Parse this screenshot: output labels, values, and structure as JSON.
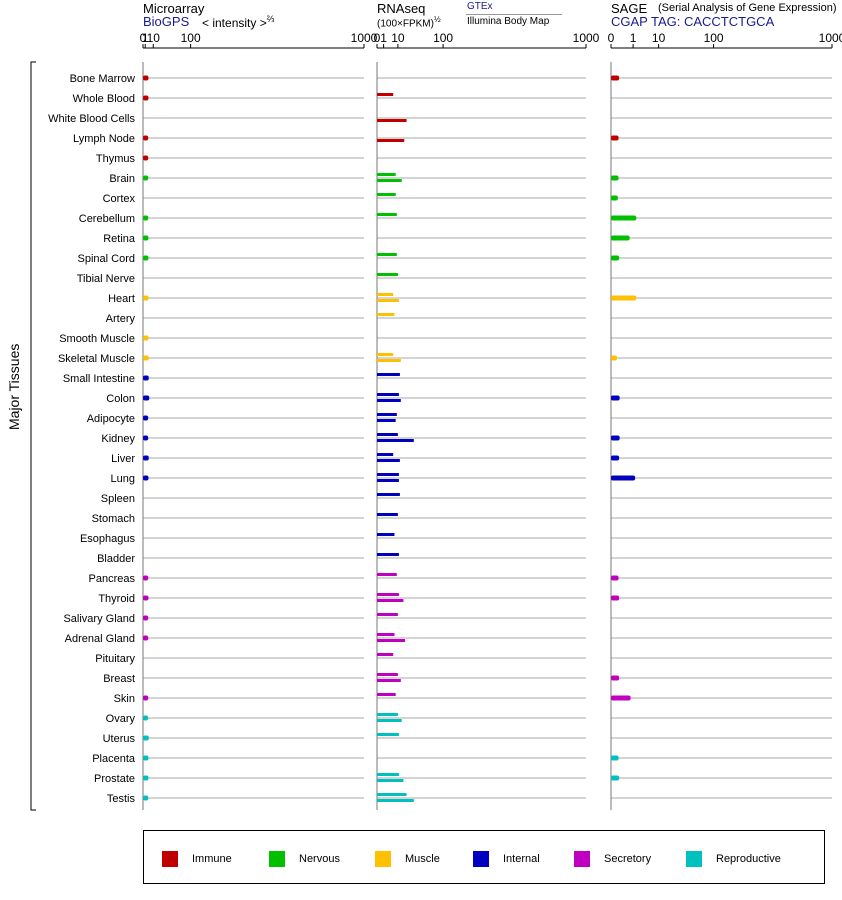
{
  "panels": {
    "microarray": {
      "title": "Microarray",
      "subtitle": "BioGPS",
      "unit": "< intensity >",
      "unit_exp": "⅔"
    },
    "rnaseq": {
      "title": "RNAseq",
      "unit": "(100×FPKM)",
      "unit_exp": "½",
      "source_top": "GTEx",
      "source_bottom": "Illumina Body Map"
    },
    "sage": {
      "title": "SAGE",
      "title_note": "(Serial Analysis of Gene Expression)",
      "subtitle": "CGAP  TAG: CACCTCTGCA"
    }
  },
  "y_axis_label": "Major Tissues",
  "legend": [
    {
      "label": "Immune",
      "color": "#c00000"
    },
    {
      "label": "Nervous",
      "color": "#00c000"
    },
    {
      "label": "Muscle",
      "color": "#ffc000"
    },
    {
      "label": "Internal",
      "color": "#0000c0"
    },
    {
      "label": "Secretory",
      "color": "#c000c0"
    },
    {
      "label": "Reproductive",
      "color": "#00c0c0"
    }
  ],
  "chart_data": {
    "type": "bar",
    "x_scale": "power-transformed expression; tick labels 0, 1, 10, 100, 1000",
    "x_ticks": [
      "0",
      "1",
      "10",
      "100",
      "1000"
    ],
    "xlim": [
      0,
      1000
    ],
    "categories": [
      "Bone Marrow",
      "Whole Blood",
      "White Blood Cells",
      "Lymph Node",
      "Thymus",
      "Brain",
      "Cortex",
      "Cerebellum",
      "Retina",
      "Spinal Cord",
      "Tibial Nerve",
      "Heart",
      "Artery",
      "Smooth Muscle",
      "Skeletal Muscle",
      "Small Intestine",
      "Colon",
      "Adipocyte",
      "Kidney",
      "Liver",
      "Lung",
      "Spleen",
      "Stomach",
      "Esophagus",
      "Bladder",
      "Pancreas",
      "Thyroid",
      "Salivary Gland",
      "Adrenal Gland",
      "Pituitary",
      "Breast",
      "Skin",
      "Ovary",
      "Uterus",
      "Placenta",
      "Prostate",
      "Testis"
    ],
    "groups": [
      "Immune",
      "Immune",
      "Immune",
      "Immune",
      "Immune",
      "Nervous",
      "Nervous",
      "Nervous",
      "Nervous",
      "Nervous",
      "Nervous",
      "Muscle",
      "Muscle",
      "Muscle",
      "Muscle",
      "Internal",
      "Internal",
      "Internal",
      "Internal",
      "Internal",
      "Internal",
      "Internal",
      "Internal",
      "Internal",
      "Internal",
      "Secretory",
      "Secretory",
      "Secretory",
      "Secretory",
      "Secretory",
      "Secretory",
      "Secretory",
      "Reproductive",
      "Reproductive",
      "Reproductive",
      "Reproductive",
      "Reproductive"
    ],
    "series": [
      {
        "name": "Microarray",
        "values": [
          3.9,
          3.9,
          null,
          3.6,
          3.6,
          3.6,
          null,
          3.6,
          3.9,
          3.9,
          null,
          3.9,
          null,
          3.9,
          4.2,
          4.2,
          4.8,
          3.6,
          3.6,
          4.2,
          3.9,
          null,
          null,
          null,
          null,
          3.6,
          3.9,
          3.6,
          3.6,
          null,
          null,
          3.6,
          3.4,
          4.2,
          3.9,
          3.9,
          3.6
        ]
      },
      {
        "name": "RNAseq (GTEx)",
        "values": [
          null,
          6,
          null,
          null,
          null,
          8,
          8,
          9,
          null,
          9,
          10,
          6,
          7,
          null,
          6,
          12,
          11,
          9,
          10,
          6,
          11,
          12,
          10,
          7,
          11,
          9,
          11,
          10,
          7,
          6,
          10,
          8,
          10,
          11,
          null,
          11,
          20
        ]
      },
      {
        "name": "RNAseq (Illumina Body Map)",
        "values": [
          null,
          null,
          20,
          17,
          null,
          14,
          null,
          null,
          null,
          null,
          null,
          11,
          null,
          null,
          13,
          null,
          13,
          8,
          31,
          12,
          11,
          null,
          null,
          null,
          null,
          null,
          16,
          null,
          18,
          null,
          13,
          null,
          14,
          null,
          null,
          16,
          31
        ]
      },
      {
        "name": "SAGE",
        "values": [
          0.05,
          null,
          null,
          0.04,
          null,
          0.04,
          0.03,
          1.5,
          0.6,
          0.05,
          null,
          1.5,
          null,
          null,
          0.02,
          null,
          0.06,
          null,
          0.06,
          0.05,
          1.3,
          null,
          null,
          null,
          null,
          0.04,
          0.05,
          null,
          null,
          null,
          0.05,
          0.7,
          null,
          null,
          0.04,
          0.05,
          null
        ]
      }
    ]
  }
}
